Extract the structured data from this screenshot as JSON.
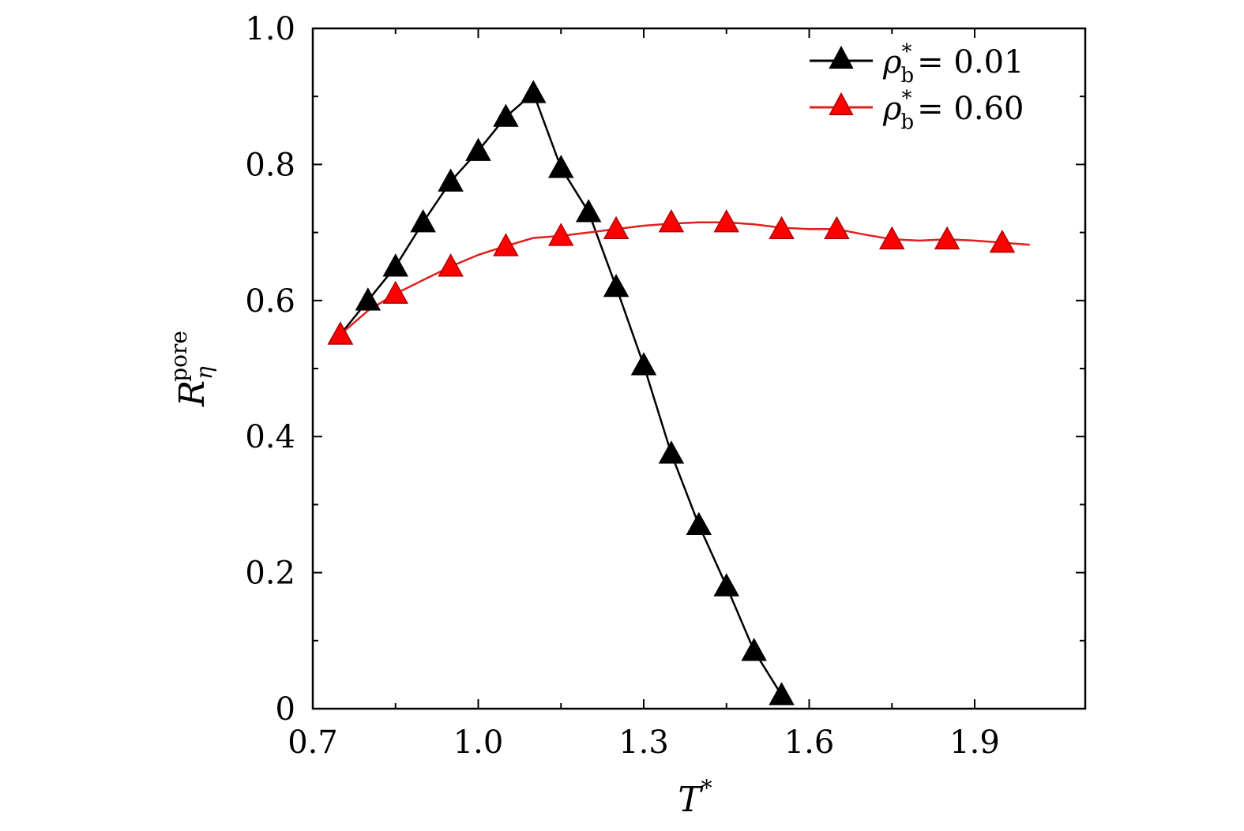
{
  "chart_data": {
    "type": "line",
    "xlabel": "T",
    "xlabel_superscript": "*",
    "ylabel": "R",
    "ylabel_superscript": "pore",
    "ylabel_subscript": "η",
    "xlim": [
      0.7,
      2.05
    ],
    "ylim": [
      0,
      1.0
    ],
    "x_ticks": [
      0.7,
      1.0,
      1.3,
      1.6,
      1.9
    ],
    "x_tick_labels": [
      "0.7",
      "1.0",
      "1.3",
      "1.6",
      "1.9"
    ],
    "y_ticks": [
      0,
      0.2,
      0.4,
      0.6,
      0.8,
      1.0
    ],
    "y_tick_labels": [
      "0",
      "0.2",
      "0.4",
      "0.6",
      "0.8",
      "1.0"
    ],
    "grid": false,
    "legend_position": "top-right",
    "series": [
      {
        "legend_symbol": "ρ",
        "legend_sub": "b",
        "legend_sup": "*",
        "legend_value": "= 0.01",
        "color": "#000000",
        "marker_fill": "#000000",
        "marker": "triangle",
        "x": [
          0.75,
          0.8,
          0.85,
          0.9,
          0.95,
          1.0,
          1.05,
          1.1,
          1.15,
          1.2,
          1.25,
          1.3,
          1.35,
          1.4,
          1.45,
          1.5,
          1.55
        ],
        "y": [
          0.55,
          0.6,
          0.65,
          0.715,
          0.775,
          0.82,
          0.87,
          0.905,
          0.795,
          0.73,
          0.62,
          0.505,
          0.375,
          0.27,
          0.18,
          0.085,
          0.02
        ]
      },
      {
        "legend_symbol": "ρ",
        "legend_sub": "b",
        "legend_sup": "*",
        "legend_value": "= 0.60",
        "color": "#e0201e",
        "marker_fill": "#ff0000",
        "marker": "triangle",
        "x": [
          0.75,
          0.85,
          0.95,
          1.05,
          1.15,
          1.25,
          1.35,
          1.45,
          1.55,
          1.65,
          1.75,
          1.85,
          1.95
        ],
        "y": [
          0.55,
          0.61,
          0.65,
          0.68,
          0.695,
          0.705,
          0.715,
          0.715,
          0.705,
          0.705,
          0.69,
          0.69,
          0.685
        ],
        "line_x": [
          0.75,
          0.8,
          0.85,
          0.9,
          0.95,
          1.0,
          1.05,
          1.1,
          1.15,
          1.2,
          1.25,
          1.3,
          1.35,
          1.4,
          1.45,
          1.5,
          1.55,
          1.6,
          1.65,
          1.7,
          1.75,
          1.8,
          1.85,
          1.9,
          1.95,
          2.0
        ],
        "line_y": [
          0.55,
          0.585,
          0.61,
          0.63,
          0.65,
          0.667,
          0.68,
          0.692,
          0.695,
          0.7,
          0.705,
          0.71,
          0.713,
          0.715,
          0.715,
          0.712,
          0.707,
          0.705,
          0.705,
          0.697,
          0.69,
          0.688,
          0.69,
          0.688,
          0.685,
          0.682
        ]
      }
    ]
  }
}
